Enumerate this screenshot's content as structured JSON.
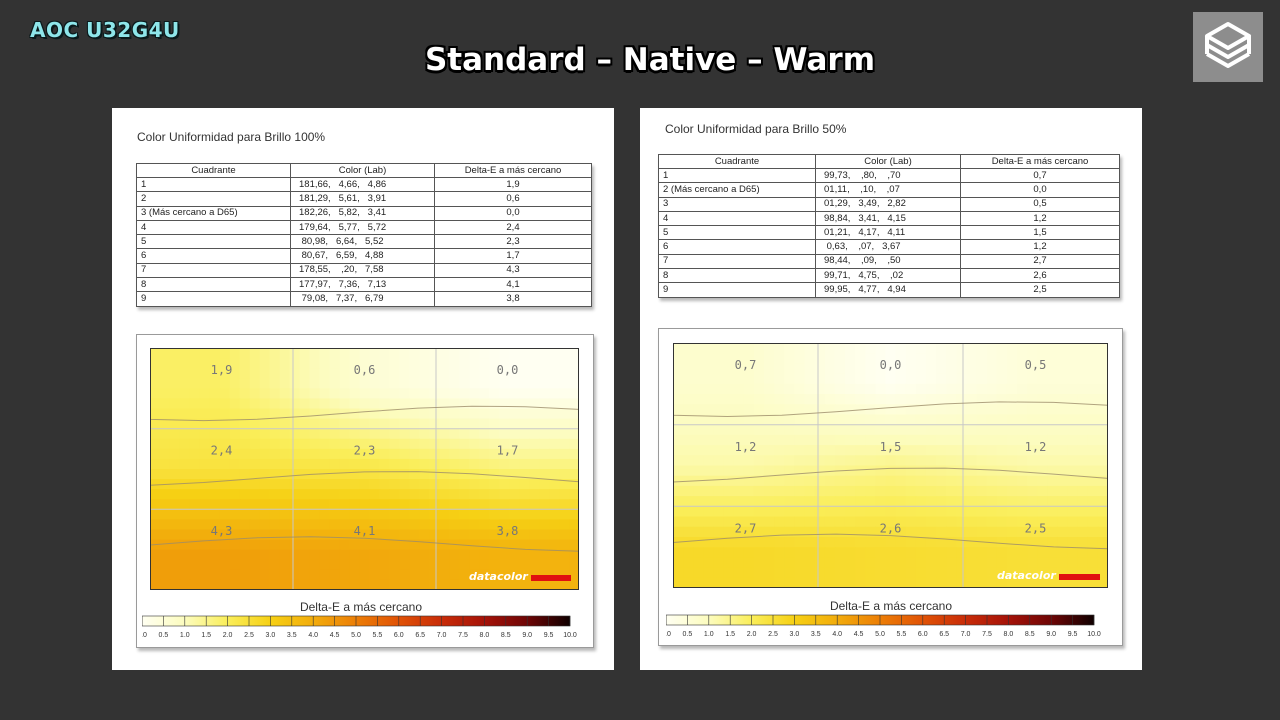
{
  "header": {
    "brand": "AOC U32G4U",
    "title": "Standard – Native – Warm",
    "logo_icon": "cube-logo-icon"
  },
  "colors": {
    "background": "#333333",
    "brand_text": "#8ee6ea",
    "datacolor_red": "#e01010"
  },
  "panels": [
    {
      "title": "Color Uniformidad para Brillo 100%",
      "table": {
        "headers": [
          "Cuadrante",
          "Color (Lab)",
          "Delta-E a más cercano"
        ],
        "rows": [
          [
            "1",
            "181,66,   4,66,   4,86",
            "1,9"
          ],
          [
            "2",
            "181,29,   5,61,   3,91",
            "0,6"
          ],
          [
            "3 (Más cercano a D65)",
            "182,26,   5,82,   3,41",
            "0,0"
          ],
          [
            "4",
            "179,64,   5,77,   5,72",
            "2,4"
          ],
          [
            "5",
            " 80,98,   6,64,   5,52",
            "2,3"
          ],
          [
            "6",
            " 80,67,   6,59,   4,88",
            "1,7"
          ],
          [
            "7",
            "178,55,    ,20,   7,58",
            "4,3"
          ],
          [
            "8",
            "177,97,   7,36,   7,13",
            "4,1"
          ],
          [
            "9",
            " 79,08,   7,37,   6,79",
            "3,8"
          ]
        ]
      },
      "brand_mark": "datacolor",
      "legend_title": "Delta-E a más cercano",
      "scale_ticks": [
        "0.0",
        "0.5",
        "1.0",
        "1.5",
        "2.0",
        "2.5",
        "3.0",
        "3.5",
        "4.0",
        "4.5",
        "5.0",
        "5.5",
        "6.0",
        "6.5",
        "7.0",
        "7.5",
        "8.0",
        "8.5",
        "9.0",
        "9.5",
        "10.0"
      ]
    },
    {
      "title": "Color Uniformidad para Brillo 50%",
      "table": {
        "headers": [
          "Cuadrante",
          "Color (Lab)",
          "Delta-E a más cercano"
        ],
        "rows": [
          [
            "1",
            "99,73,    ,80,    ,70",
            "0,7"
          ],
          [
            "2 (Más cercano a D65)",
            "01,11,    ,10,    ,07",
            "0,0"
          ],
          [
            "3",
            "01,29,   3,49,   2,82",
            "0,5"
          ],
          [
            "4",
            "98,84,   3,41,   4,15",
            "1,2"
          ],
          [
            "5",
            "01,21,   4,17,   4,11",
            "1,5"
          ],
          [
            "6",
            " 0,63,    ,07,   3,67",
            "1,2"
          ],
          [
            "7",
            "98,44,    ,09,    ,50",
            "2,7"
          ],
          [
            "8",
            "99,71,   4,75,    ,02",
            "2,6"
          ],
          [
            "9",
            "99,95,   4,77,   4,94",
            "2,5"
          ]
        ]
      },
      "brand_mark": "datacolor",
      "legend_title": "Delta-E a más cercano",
      "scale_ticks": [
        "0.0",
        "0.5",
        "1.0",
        "1.5",
        "2.0",
        "2.5",
        "3.0",
        "3.5",
        "4.0",
        "4.5",
        "5.0",
        "5.5",
        "6.0",
        "6.5",
        "7.0",
        "7.5",
        "8.0",
        "8.5",
        "9.0",
        "9.5",
        "10.0"
      ]
    }
  ],
  "chart_data": [
    {
      "type": "heatmap",
      "title": "Color Uniformidad para Brillo 100%",
      "colorbar_label": "Delta-E a más cercano",
      "colorbar_range": [
        0,
        10
      ],
      "grid": [
        [
          1.9,
          0.6,
          0.0
        ],
        [
          2.4,
          2.3,
          1.7
        ],
        [
          4.3,
          4.1,
          3.8
        ]
      ],
      "cell_labels": [
        [
          "1,9",
          "0,6",
          "0,0"
        ],
        [
          "2,4",
          "2,3",
          "1,7"
        ],
        [
          "4,3",
          "4,1",
          "3,8"
        ]
      ]
    },
    {
      "type": "heatmap",
      "title": "Color Uniformidad para Brillo 50%",
      "colorbar_label": "Delta-E a más cercano",
      "colorbar_range": [
        0,
        10
      ],
      "grid": [
        [
          0.7,
          0.0,
          0.5
        ],
        [
          1.2,
          1.5,
          1.2
        ],
        [
          2.7,
          2.6,
          2.5
        ]
      ],
      "cell_labels": [
        [
          "0,7",
          "0,0",
          "0,5"
        ],
        [
          "1,2",
          "1,5",
          "1,2"
        ],
        [
          "2,7",
          "2,6",
          "2,5"
        ]
      ]
    }
  ]
}
